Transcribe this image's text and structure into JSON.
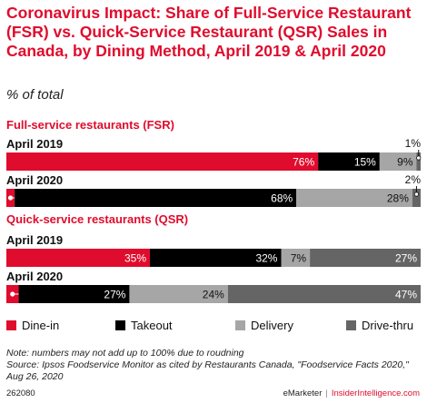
{
  "colors": {
    "dine_in": "#e00c2d",
    "takeout": "#000000",
    "delivery": "#a6a6a6",
    "drive_thru": "#656565",
    "accent": "#e00c2d"
  },
  "chart_data": {
    "type": "bar",
    "orientation": "horizontal",
    "stacked": true,
    "title": "Coronavirus Impact: Share of Full-Service Restaurant (FSR) vs. Quick-Service Restaurant (QSR) Sales in Canada, by Dining Method, April 2019 & April 2020",
    "subtitle": "% of total",
    "xlim": [
      0,
      100
    ],
    "legend_position": "bottom",
    "series_names": [
      "Dine-in",
      "Takeout",
      "Delivery",
      "Drive-thru"
    ],
    "groups": [
      {
        "label": "Full-service restaurants (FSR)",
        "rows": [
          {
            "label": "April 2019",
            "values": [
              76,
              15,
              9,
              1
            ],
            "value_labels": [
              "76%",
              "15%",
              "9%",
              "1%"
            ]
          },
          {
            "label": "April 2020",
            "values": [
              2,
              68,
              28,
              2
            ],
            "value_labels": [
              "2%",
              "68%",
              "28%",
              "2%"
            ]
          }
        ]
      },
      {
        "label": "Quick-service restaurants (QSR)",
        "rows": [
          {
            "label": "April 2019",
            "values": [
              35,
              32,
              7,
              27
            ],
            "value_labels": [
              "35%",
              "32%",
              "7%",
              "27%"
            ]
          },
          {
            "label": "April 2020",
            "values": [
              3,
              27,
              24,
              47
            ],
            "value_labels": [
              "3%",
              "27%",
              "24%",
              "47%"
            ]
          }
        ]
      }
    ]
  },
  "footnotes": {
    "note": "Note: numbers may not add up to 100% due to roudning",
    "source": "Source: Ipsos Foodservice Monitor as cited by Restaurants Canada, \"Foodservice Facts 2020,\" Aug 26, 2020"
  },
  "credits": {
    "chart_id": "262080",
    "emarketer": "eMarketer",
    "separator": "|",
    "insider": "InsiderIntelligence.com"
  }
}
